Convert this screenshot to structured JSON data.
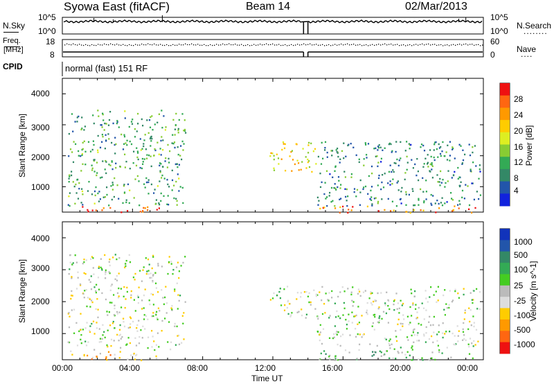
{
  "header": {
    "station": "Syowa East (fitACF)",
    "beam": "Beam 14",
    "date": "02/Mar/2013"
  },
  "top_strip": {
    "left_label": "N.Sky",
    "left_ticks": [
      "10^5",
      "10^0"
    ],
    "right_ticks": [
      "10^5",
      "10^0"
    ],
    "right_label": "N.Search",
    "right_legend_line": "........"
  },
  "freq_strip": {
    "left_label_1": "Freq.",
    "left_label_2": "[MHz]",
    "left_ticks": [
      "18",
      "8"
    ],
    "right_ticks": [
      "60",
      "0"
    ],
    "right_label": "Nave",
    "right_legend_line": "...."
  },
  "cpid_strip": {
    "label": "CPID",
    "program": "normal (fast) 151 RF"
  },
  "time_axis": {
    "ticks": [
      "00:00",
      "04:00",
      "08:00",
      "12:00",
      "16:00",
      "20:00",
      "00:00"
    ],
    "label": "Time UT"
  },
  "panels": {
    "power": {
      "ylabel": "Slant Range [km]",
      "yticks": [
        "4000",
        "3000",
        "2000",
        "1000"
      ],
      "colorbar_label": "Power [dB]",
      "colorbar_ticks": [
        "28",
        "24",
        "20",
        "16",
        "12",
        "8",
        "4"
      ],
      "colors": [
        "#ee1111",
        "#ff6611",
        "#ff9900",
        "#ffcc00",
        "#ddee22",
        "#88cc33",
        "#33aa55",
        "#338866",
        "#2255aa",
        "#1122dd"
      ]
    },
    "velocity": {
      "ylabel": "Slant Range [km]",
      "yticks": [
        "4000",
        "3000",
        "2000",
        "1000"
      ],
      "colorbar_label": "Velocity [m s^-1]",
      "colorbar_ticks": [
        "1000",
        "500",
        "100",
        "25",
        "-25",
        "-100",
        "-500",
        "-1000"
      ],
      "colors": [
        "#1133bb",
        "#2255aa",
        "#338866",
        "#33aa55",
        "#44cc22",
        "#bbbbbb",
        "#dddddd",
        "#ffcc00",
        "#ff9900",
        "#ff6611",
        "#ee1111"
      ]
    }
  },
  "chart_data": [
    {
      "type": "line",
      "title": "N.Sky / N.Search",
      "x": [
        "00:00",
        "04:00",
        "08:00",
        "12:00",
        "16:00",
        "20:00",
        "00:00"
      ],
      "series": [
        {
          "name": "N.Sky",
          "values": [
            50000,
            60000,
            55000,
            60000,
            55000,
            60000,
            90000
          ]
        }
      ],
      "ylim": [
        1,
        100000
      ]
    },
    {
      "type": "line",
      "title": "Freq. [MHz] / Nave",
      "x": [
        "00:00",
        "04:00",
        "08:00",
        "12:00",
        "16:00",
        "20:00",
        "00:00"
      ],
      "series": [
        {
          "name": "Freq.",
          "values": [
            10,
            10,
            10,
            10,
            10,
            10,
            10
          ]
        },
        {
          "name": "Nave",
          "values": [
            40,
            39,
            40,
            40,
            40,
            39,
            39
          ]
        }
      ],
      "ylim": [
        8,
        18
      ]
    },
    {
      "type": "heatmap",
      "title": "Power [dB]",
      "xlabel": "Time UT",
      "ylabel": "Slant Range [km]",
      "ylim": [
        180,
        4500
      ],
      "xlim": [
        "00:00",
        "24:00"
      ],
      "color_scale": [
        0,
        30
      ],
      "scatter_regions": [
        {
          "t_start": 0.2,
          "t_end": 5.5,
          "range_lo": 180,
          "range_hi": 400,
          "value": 26
        },
        {
          "t_start": 0.3,
          "t_end": 7.0,
          "range_lo": 400,
          "range_hi": 3500,
          "value": 10
        },
        {
          "t_start": 11.8,
          "t_end": 14.5,
          "range_lo": 1500,
          "range_hi": 2500,
          "value": 18
        },
        {
          "t_start": 14.5,
          "t_end": 23.8,
          "range_lo": 180,
          "range_hi": 400,
          "value": 24
        },
        {
          "t_start": 14.5,
          "t_end": 23.8,
          "range_lo": 400,
          "range_hi": 2500,
          "value": 8
        }
      ]
    },
    {
      "type": "heatmap",
      "title": "Velocity [m s^-1]",
      "xlabel": "Time UT",
      "ylabel": "Slant Range [km]",
      "ylim": [
        180,
        4500
      ],
      "xlim": [
        "00:00",
        "24:00"
      ],
      "color_scale": [
        -1000,
        1000
      ],
      "scatter_regions": [
        {
          "t_start": 0.2,
          "t_end": 5.5,
          "range_lo": 180,
          "range_hi": 500,
          "value": -400
        },
        {
          "t_start": 0.3,
          "t_end": 7.0,
          "range_lo": 500,
          "range_hi": 3500,
          "value": -50
        },
        {
          "t_start": 11.8,
          "t_end": 14.5,
          "range_lo": 1500,
          "range_hi": 2500,
          "value": 0
        },
        {
          "t_start": 14.5,
          "t_end": 23.8,
          "range_lo": 180,
          "range_hi": 600,
          "value": 150
        },
        {
          "t_start": 14.5,
          "t_end": 23.8,
          "range_lo": 600,
          "range_hi": 2500,
          "value": -10
        }
      ]
    }
  ]
}
